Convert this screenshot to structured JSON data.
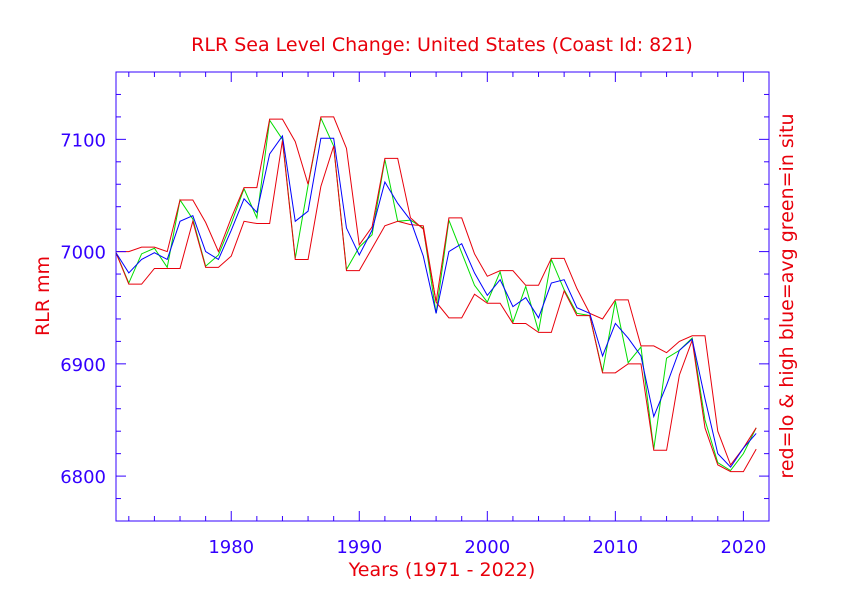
{
  "colors": {
    "axis": "#3300ff",
    "title": "#e8000b",
    "tick_label": "#3300ff",
    "red_band": "#e8000b",
    "blue_avg": "#0000ff",
    "green_insitu": "#00dd00"
  },
  "chart_data": {
    "type": "line",
    "title": "RLR Sea Level Change: United States (Coast Id: 821)",
    "xlabel": "Years (1971 - 2022)",
    "ylabel": "RLR mm",
    "right_label": "red=lo & high  blue=avg  green=in situ",
    "xlim": [
      1971,
      2022
    ],
    "ylim": [
      6760,
      7160
    ],
    "x_ticks": [
      1980,
      1990,
      2000,
      2010,
      2020
    ],
    "x_tick_labels": [
      "1980",
      "1990",
      "2000",
      "2010",
      "2020"
    ],
    "y_ticks": [
      6800,
      6900,
      7000,
      7100
    ],
    "y_tick_labels": [
      "6800",
      "6900",
      "7000",
      "7100"
    ],
    "x": [
      1971,
      1972,
      1973,
      1974,
      1975,
      1976,
      1977,
      1978,
      1979,
      1980,
      1981,
      1982,
      1983,
      1984,
      1985,
      1986,
      1987,
      1988,
      1989,
      1990,
      1991,
      1992,
      1993,
      1994,
      1995,
      1996,
      1997,
      1998,
      1999,
      2000,
      2001,
      2002,
      2003,
      2004,
      2005,
      2006,
      2007,
      2008,
      2009,
      2010,
      2011,
      2012,
      2013,
      2014,
      2015,
      2016,
      2017,
      2018,
      2019,
      2020,
      2021
    ],
    "series": [
      {
        "name": "high",
        "color": "red",
        "values": [
          7000,
          7000,
          7004,
          7004,
          7000,
          7046,
          7046,
          7026,
          7000,
          7030,
          7057,
          7057,
          7118,
          7118,
          7098,
          7060,
          7120,
          7120,
          7092,
          7006,
          7022,
          7083,
          7083,
          7030,
          7020,
          6955,
          7030,
          7030,
          6998,
          6978,
          6983,
          6983,
          6970,
          6970,
          6994,
          6994,
          6967,
          6945,
          6940,
          6957,
          6957,
          6916,
          6916,
          6910,
          6920,
          6925,
          6925,
          6840,
          6810,
          6825,
          6843
        ]
      },
      {
        "name": "low",
        "color": "red",
        "values": [
          6999,
          6971,
          6971,
          6985,
          6985,
          6985,
          7027,
          6986,
          6986,
          6996,
          7027,
          7025,
          7025,
          7099,
          6993,
          6993,
          7058,
          7094,
          6983,
          6983,
          7003,
          7023,
          7027,
          7024,
          7023,
          6955,
          6941,
          6941,
          6962,
          6954,
          6954,
          6936,
          6936,
          6928,
          6928,
          6965,
          6943,
          6943,
          6892,
          6892,
          6900,
          6900,
          6823,
          6823,
          6890,
          6921,
          6843,
          6810,
          6804,
          6804,
          6824
        ]
      },
      {
        "name": "avg",
        "color": "blue",
        "values": [
          6999,
          6981,
          6993,
          6999,
          6993,
          7027,
          7032,
          7000,
          6993,
          7019,
          7047,
          7035,
          7087,
          7103,
          7027,
          7036,
          7101,
          7101,
          7021,
          6997,
          7019,
          7062,
          7043,
          7028,
          6996,
          6945,
          7000,
          7007,
          6981,
          6961,
          6975,
          6951,
          6959,
          6941,
          6972,
          6975,
          6950,
          6945,
          6907,
          6936,
          6923,
          6907,
          6853,
          6881,
          6912,
          6922,
          6869,
          6820,
          6808,
          6825,
          6838
        ]
      },
      {
        "name": "in situ",
        "color": "green",
        "values": [
          6999,
          6972,
          6998,
          7003,
          6986,
          7046,
          7029,
          6987,
          6997,
          7025,
          7056,
          7030,
          7117,
          7100,
          6994,
          7059,
          7119,
          7094,
          6984,
          7004,
          7015,
          7082,
          7027,
          7028,
          7021,
          6945,
          7028,
          6999,
          6970,
          6955,
          6982,
          6937,
          6969,
          6929,
          6993,
          6966,
          6945,
          6943,
          6893,
          6956,
          6901,
          6915,
          6824,
          6905,
          6912,
          6923,
          6850,
          6812,
          6805,
          6820,
          6843
        ]
      }
    ]
  }
}
